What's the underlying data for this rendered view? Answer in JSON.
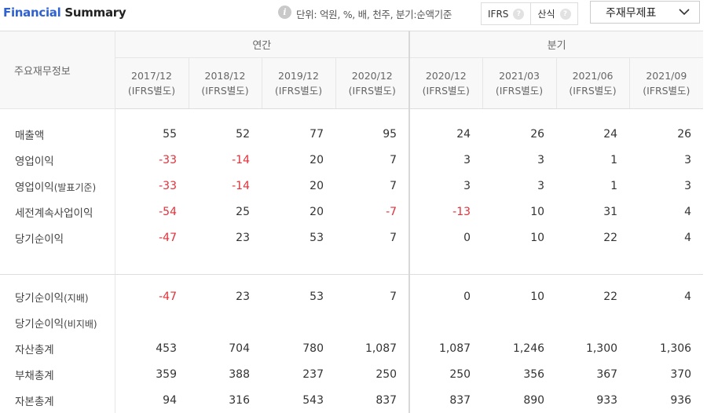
{
  "header": {
    "title_part1": "Financial",
    "title_part2": "Summary",
    "info_icon_text": "i",
    "unit_text": "단위: 억원, %, 배, 천주, 분기:순액기준",
    "toggles": [
      {
        "label": "IFRS",
        "help": "?"
      },
      {
        "label": "산식",
        "help": "?"
      }
    ],
    "statement_select": "주재무제표"
  },
  "table": {
    "corner_label": "주요재무정보",
    "group_annual": "연간",
    "group_quarter": "분기",
    "periods": [
      {
        "date": "2017/12",
        "basis": "(IFRS별도)"
      },
      {
        "date": "2018/12",
        "basis": "(IFRS별도)"
      },
      {
        "date": "2019/12",
        "basis": "(IFRS별도)"
      },
      {
        "date": "2020/12",
        "basis": "(IFRS별도)"
      },
      {
        "date": "2020/12",
        "basis": "(IFRS별도)"
      },
      {
        "date": "2021/03",
        "basis": "(IFRS별도)"
      },
      {
        "date": "2021/06",
        "basis": "(IFRS별도)"
      },
      {
        "date": "2021/09",
        "basis": "(IFRS별도)"
      }
    ],
    "rows": [
      {
        "label": "매출액",
        "suffix": "",
        "values": [
          "55",
          "52",
          "77",
          "95",
          "24",
          "26",
          "24",
          "26"
        ]
      },
      {
        "label": "영업이익",
        "suffix": "",
        "values": [
          "-33",
          "-14",
          "20",
          "7",
          "3",
          "3",
          "1",
          "3"
        ]
      },
      {
        "label": "영업이익",
        "suffix": "(발표기준)",
        "values": [
          "-33",
          "-14",
          "20",
          "7",
          "3",
          "3",
          "1",
          "3"
        ]
      },
      {
        "label": "세전계속사업이익",
        "suffix": "",
        "values": [
          "-54",
          "25",
          "20",
          "-7",
          "-13",
          "10",
          "31",
          "4"
        ]
      },
      {
        "label": "당기순이익",
        "suffix": "",
        "values": [
          "-47",
          "23",
          "53",
          "7",
          "0",
          "10",
          "22",
          "4"
        ]
      },
      {
        "label": "당기순이익",
        "suffix": "(지배)",
        "values": [
          "-47",
          "23",
          "53",
          "7",
          "0",
          "10",
          "22",
          "4"
        ]
      },
      {
        "label": "당기순이익",
        "suffix": "(비지배)",
        "values": [
          "",
          "",
          "",
          "",
          "",
          "",
          "",
          ""
        ]
      },
      {
        "label": "자산총계",
        "suffix": "",
        "values": [
          "453",
          "704",
          "780",
          "1,087",
          "1,087",
          "1,246",
          "1,300",
          "1,306"
        ]
      },
      {
        "label": "부채총계",
        "suffix": "",
        "values": [
          "359",
          "388",
          "237",
          "250",
          "250",
          "356",
          "367",
          "370"
        ]
      },
      {
        "label": "자본총계",
        "suffix": "",
        "values": [
          "94",
          "316",
          "543",
          "837",
          "837",
          "890",
          "933",
          "936"
        ]
      }
    ]
  },
  "colors": {
    "accent_blue": "#2f62cf",
    "negative_red": "#e0303a",
    "header_bg": "#f8f8f8"
  }
}
